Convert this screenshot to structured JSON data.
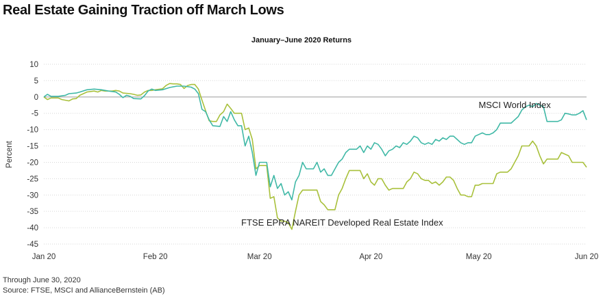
{
  "title": "Real Estate Gaining Traction off March Lows",
  "footer": {
    "note": "Through June 30, 2020",
    "source": "Source: FTSE, MSCI and AllianceBernstein (AB)"
  },
  "chart_data": {
    "type": "line",
    "title": "January–June 2020 Returns",
    "xlabel": "",
    "ylabel": "Percent",
    "ylim": [
      -45,
      10
    ],
    "yticks": [
      10,
      5,
      0,
      -5,
      -10,
      -15,
      -20,
      -25,
      -30,
      -35,
      -40,
      -45
    ],
    "xlim": [
      0,
      151
    ],
    "xticks": [
      {
        "label": "Jan 20",
        "x": 0
      },
      {
        "label": "Feb 20",
        "x": 31
      },
      {
        "label": "Mar 20",
        "x": 60
      },
      {
        "label": "Apr 20",
        "x": 91
      },
      {
        "label": "May 20",
        "x": 121
      },
      {
        "label": "Jun 20",
        "x": 151
      }
    ],
    "grid": true,
    "legend": "none",
    "series": [
      {
        "name": "MSCI World Index",
        "color": "#3fb8a6",
        "label_at": [
          131,
          -2.5
        ],
        "points": [
          [
            0,
            0
          ],
          [
            1,
            0.8
          ],
          [
            2,
            0.2
          ],
          [
            4,
            0.2
          ],
          [
            6,
            0.5
          ],
          [
            7,
            1
          ],
          [
            9,
            1.2
          ],
          [
            10,
            1.5
          ],
          [
            12,
            2.2
          ],
          [
            14,
            2.4
          ],
          [
            16,
            2.2
          ],
          [
            18,
            1.8
          ],
          [
            20,
            1.5
          ],
          [
            21,
            0.8
          ],
          [
            22,
            -0.2
          ],
          [
            23,
            0.5
          ],
          [
            24,
            0.2
          ],
          [
            25,
            -0.5
          ],
          [
            27,
            -0.6
          ],
          [
            28,
            0.4
          ],
          [
            29,
            1.8
          ],
          [
            30,
            2.4
          ],
          [
            31,
            2
          ],
          [
            33,
            2.2
          ],
          [
            35,
            2.9
          ],
          [
            37,
            3.3
          ],
          [
            39,
            3.3
          ],
          [
            41,
            3
          ],
          [
            42,
            2.4
          ],
          [
            43,
            1
          ],
          [
            44,
            -3.8
          ],
          [
            45,
            -4.5
          ],
          [
            46,
            -7
          ],
          [
            47,
            -8.8
          ],
          [
            49,
            -9
          ],
          [
            50,
            -6
          ],
          [
            51,
            -7.5
          ],
          [
            52,
            -4.5
          ],
          [
            53,
            -7
          ],
          [
            54,
            -8.8
          ],
          [
            55,
            -8.8
          ],
          [
            56,
            -15
          ],
          [
            57,
            -12
          ],
          [
            58,
            -17
          ],
          [
            59,
            -24
          ],
          [
            60,
            -20
          ],
          [
            62,
            -20
          ],
          [
            63,
            -27.5
          ],
          [
            64,
            -24
          ],
          [
            65,
            -28
          ],
          [
            66,
            -26.5
          ],
          [
            67,
            -30
          ],
          [
            68,
            -29
          ],
          [
            69,
            -31.5
          ],
          [
            70,
            -26
          ],
          [
            71,
            -24
          ],
          [
            72,
            -20
          ],
          [
            73,
            -22
          ],
          [
            75,
            -22
          ],
          [
            76,
            -20
          ],
          [
            77,
            -23
          ],
          [
            78,
            -22
          ],
          [
            79,
            -24
          ],
          [
            80,
            -24
          ],
          [
            82,
            -20
          ],
          [
            83,
            -19
          ],
          [
            84,
            -17
          ],
          [
            85,
            -16
          ],
          [
            87,
            -16
          ],
          [
            88,
            -15
          ],
          [
            89,
            -17
          ],
          [
            90,
            -15
          ],
          [
            91,
            -16
          ],
          [
            92,
            -14
          ],
          [
            93,
            -14.5
          ],
          [
            94,
            -16
          ],
          [
            95,
            -18
          ],
          [
            96,
            -16.5
          ],
          [
            97,
            -16
          ],
          [
            98,
            -15
          ],
          [
            99,
            -15.5
          ],
          [
            100,
            -14
          ],
          [
            101,
            -14.5
          ],
          [
            102,
            -13.5
          ],
          [
            103,
            -12
          ],
          [
            104,
            -12.5
          ],
          [
            105,
            -14
          ],
          [
            106,
            -14.5
          ],
          [
            107,
            -14
          ],
          [
            108,
            -14.5
          ],
          [
            109,
            -13
          ],
          [
            110,
            -13.5
          ],
          [
            111,
            -12.5
          ],
          [
            112,
            -13
          ],
          [
            113,
            -12
          ],
          [
            114,
            -12
          ],
          [
            115,
            -13
          ],
          [
            116,
            -14
          ],
          [
            117,
            -14.5
          ],
          [
            118,
            -14
          ],
          [
            119,
            -14
          ],
          [
            120,
            -12
          ],
          [
            121,
            -11.5
          ],
          [
            122,
            -11
          ],
          [
            123,
            -11.5
          ],
          [
            124,
            -11.5
          ],
          [
            125,
            -11
          ],
          [
            126,
            -10
          ],
          [
            127,
            -8
          ],
          [
            128,
            -8
          ],
          [
            130,
            -8
          ],
          [
            131,
            -7
          ],
          [
            132,
            -6
          ],
          [
            133,
            -4
          ],
          [
            134,
            -3
          ],
          [
            135,
            -2.5
          ],
          [
            136,
            -3
          ],
          [
            137,
            -2
          ],
          [
            138,
            -2.5
          ],
          [
            139,
            -3
          ],
          [
            140,
            -7.5
          ],
          [
            141,
            -7.5
          ],
          [
            142,
            -7.5
          ],
          [
            143,
            -7.5
          ],
          [
            144,
            -7
          ],
          [
            145,
            -5
          ],
          [
            146,
            -5.2
          ],
          [
            147,
            -5.5
          ],
          [
            148,
            -5.5
          ],
          [
            149,
            -5
          ],
          [
            150,
            -4.2
          ],
          [
            151,
            -7
          ]
        ]
      },
      {
        "name": "FTSE EPRA NAREIT Developed Real Estate Index",
        "color": "#a8c03a",
        "label_at": [
          83,
          -38.5
        ],
        "points": [
          [
            0,
            0
          ],
          [
            1,
            -0.8
          ],
          [
            2,
            -0.3
          ],
          [
            4,
            -0.3
          ],
          [
            5,
            -0.8
          ],
          [
            6,
            -1
          ],
          [
            7,
            -1.2
          ],
          [
            8,
            -0.6
          ],
          [
            9,
            -0.5
          ],
          [
            10,
            0.5
          ],
          [
            12,
            1.5
          ],
          [
            14,
            1.8
          ],
          [
            15,
            1.5
          ],
          [
            16,
            2
          ],
          [
            17,
            1.8
          ],
          [
            19,
            1.8
          ],
          [
            20,
            2
          ],
          [
            21,
            1.8
          ],
          [
            22,
            1.2
          ],
          [
            24,
            1
          ],
          [
            25,
            0.8
          ],
          [
            26,
            0.5
          ],
          [
            27,
            0.6
          ],
          [
            28,
            1.5
          ],
          [
            29,
            2
          ],
          [
            30,
            2
          ],
          [
            31,
            2.2
          ],
          [
            33,
            2.5
          ],
          [
            34,
            3.5
          ],
          [
            35,
            4.1
          ],
          [
            36,
            4
          ],
          [
            37,
            4
          ],
          [
            38,
            3.8
          ],
          [
            39,
            2.6
          ],
          [
            40,
            3.5
          ],
          [
            41,
            3.8
          ],
          [
            42,
            3.8
          ],
          [
            43,
            2.4
          ],
          [
            44,
            -1
          ],
          [
            45,
            -4.2
          ],
          [
            46,
            -7.3
          ],
          [
            47,
            -7.5
          ],
          [
            48,
            -7.5
          ],
          [
            49,
            -5.5
          ],
          [
            50,
            -4.5
          ],
          [
            51,
            -2.2
          ],
          [
            52,
            -3.5
          ],
          [
            53,
            -5
          ],
          [
            54,
            -5
          ],
          [
            55,
            -5
          ],
          [
            56,
            -10
          ],
          [
            57,
            -9.5
          ],
          [
            58,
            -13
          ],
          [
            59,
            -22
          ],
          [
            60,
            -21
          ],
          [
            62,
            -21
          ],
          [
            63,
            -31
          ],
          [
            64,
            -30.5
          ],
          [
            65,
            -37
          ],
          [
            66,
            -38
          ],
          [
            67,
            -38
          ],
          [
            68,
            -38.5
          ],
          [
            69,
            -40.5
          ],
          [
            70,
            -35
          ],
          [
            71,
            -30
          ],
          [
            72,
            -28.5
          ],
          [
            73,
            -28.5
          ],
          [
            75,
            -28.5
          ],
          [
            76,
            -28.5
          ],
          [
            77,
            -32
          ],
          [
            78,
            -33
          ],
          [
            79,
            -34.5
          ],
          [
            80,
            -34.5
          ],
          [
            81,
            -34.5
          ],
          [
            82,
            -30
          ],
          [
            83,
            -28
          ],
          [
            84,
            -25
          ],
          [
            85,
            -22.5
          ],
          [
            87,
            -22.5
          ],
          [
            88,
            -22.5
          ],
          [
            89,
            -25
          ],
          [
            90,
            -23.5
          ],
          [
            91,
            -26
          ],
          [
            92,
            -27
          ],
          [
            93,
            -25
          ],
          [
            94,
            -25
          ],
          [
            95,
            -27
          ],
          [
            96,
            -28.5
          ],
          [
            97,
            -28
          ],
          [
            98,
            -28
          ],
          [
            99,
            -28
          ],
          [
            100,
            -28
          ],
          [
            101,
            -26
          ],
          [
            102,
            -25
          ],
          [
            103,
            -23
          ],
          [
            104,
            -23.5
          ],
          [
            105,
            -25
          ],
          [
            106,
            -25.5
          ],
          [
            107,
            -25.5
          ],
          [
            108,
            -26.5
          ],
          [
            109,
            -26
          ],
          [
            110,
            -27
          ],
          [
            111,
            -26
          ],
          [
            112,
            -24.5
          ],
          [
            113,
            -24.5
          ],
          [
            114,
            -25.5
          ],
          [
            115,
            -28
          ],
          [
            116,
            -30
          ],
          [
            117,
            -30
          ],
          [
            118,
            -30.5
          ],
          [
            119,
            -30.5
          ],
          [
            120,
            -27
          ],
          [
            121,
            -27
          ],
          [
            122,
            -26.5
          ],
          [
            123,
            -26.5
          ],
          [
            124,
            -26.5
          ],
          [
            125,
            -26.5
          ],
          [
            126,
            -23.5
          ],
          [
            127,
            -23
          ],
          [
            128,
            -23
          ],
          [
            129,
            -23
          ],
          [
            130,
            -22
          ],
          [
            131,
            -20
          ],
          [
            132,
            -18
          ],
          [
            133,
            -15
          ],
          [
            134,
            -15
          ],
          [
            135,
            -15
          ],
          [
            136,
            -13.5
          ],
          [
            137,
            -15
          ],
          [
            138,
            -18
          ],
          [
            139,
            -20.5
          ],
          [
            140,
            -19
          ],
          [
            141,
            -19
          ],
          [
            142,
            -19
          ],
          [
            143,
            -19
          ],
          [
            144,
            -17
          ],
          [
            145,
            -17.5
          ],
          [
            146,
            -18
          ],
          [
            147,
            -20
          ],
          [
            149,
            -20
          ],
          [
            150,
            -20
          ],
          [
            151,
            -21.5
          ]
        ]
      }
    ]
  }
}
